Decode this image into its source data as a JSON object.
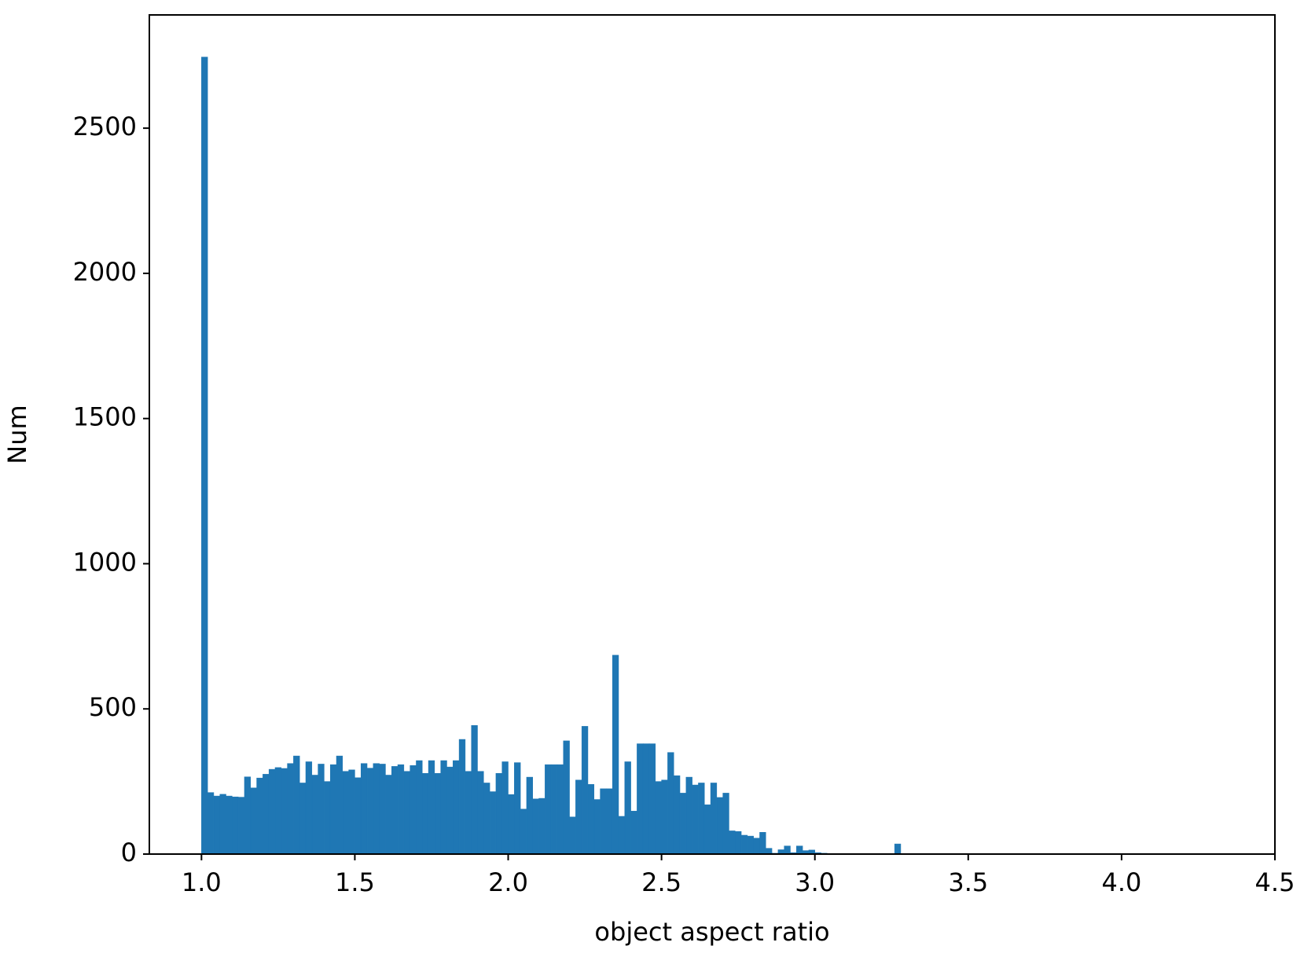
{
  "chart_data": {
    "type": "histogram",
    "xlabel": "object aspect ratio",
    "ylabel": "Num",
    "color": "#1f77b4",
    "bins": [
      1.0,
      1.02,
      1.04,
      1.06,
      1.08,
      1.1,
      1.12,
      1.14,
      1.16,
      1.18,
      1.2,
      1.22,
      1.24,
      1.26,
      1.28,
      1.3,
      1.32,
      1.34,
      1.36,
      1.38,
      1.4,
      1.42,
      1.44,
      1.46,
      1.48,
      1.5,
      1.52,
      1.54,
      1.56,
      1.58,
      1.6,
      1.62,
      1.64,
      1.66,
      1.68,
      1.7,
      1.72,
      1.74,
      1.76,
      1.78,
      1.8,
      1.82,
      1.84,
      1.86,
      1.88,
      1.9,
      1.92,
      1.94,
      1.96,
      1.98,
      2.0,
      2.02,
      2.04,
      2.06,
      2.08,
      2.1,
      2.12,
      2.14,
      2.16,
      2.18,
      2.2,
      2.22,
      2.24,
      2.26,
      2.28,
      2.3,
      2.32,
      2.34,
      2.36,
      2.38,
      2.4,
      2.42,
      2.44,
      2.46,
      2.48,
      2.5,
      2.52,
      2.54,
      2.56,
      2.58,
      2.6,
      2.62,
      2.64,
      2.66,
      2.68,
      2.7,
      2.72,
      2.74,
      2.76,
      2.78,
      2.8,
      2.82,
      2.84,
      2.86,
      2.88,
      2.9,
      2.92,
      2.94,
      2.96,
      2.98,
      3.0,
      3.02,
      3.04,
      3.06,
      3.08,
      3.1,
      3.12,
      3.14,
      3.16,
      3.18,
      3.2,
      3.22,
      3.24,
      3.26,
      3.28,
      3.3
    ],
    "values": [
      2745,
      212,
      200,
      206,
      200,
      197,
      196,
      266,
      228,
      262,
      275,
      292,
      298,
      295,
      312,
      338,
      245,
      318,
      272,
      310,
      250,
      308,
      338,
      285,
      290,
      263,
      312,
      296,
      312,
      310,
      272,
      302,
      308,
      285,
      305,
      322,
      278,
      322,
      278,
      322,
      300,
      322,
      395,
      285,
      443,
      285,
      245,
      215,
      278,
      318,
      205,
      315,
      155,
      265,
      190,
      192,
      308,
      308,
      308,
      390,
      128,
      255,
      440,
      240,
      188,
      225,
      225,
      685,
      130,
      318,
      148,
      380,
      380,
      380,
      250,
      255,
      350,
      270,
      210,
      265,
      238,
      245,
      170,
      245,
      195,
      210,
      80,
      78,
      65,
      62,
      55,
      75,
      20,
      3,
      15,
      28,
      5,
      28,
      12,
      14,
      5,
      3,
      1,
      0,
      0,
      0,
      0,
      0,
      0,
      0,
      0,
      0,
      0,
      35,
      0
    ],
    "xlim": [
      0.83,
      4.5
    ],
    "ylim": [
      0,
      2890
    ],
    "xticks": [
      {
        "value": 1,
        "label": "1.0"
      },
      {
        "value": 1.5,
        "label": "1.5"
      },
      {
        "value": 2,
        "label": "2.0"
      },
      {
        "value": 2.5,
        "label": "2.5"
      },
      {
        "value": 3,
        "label": "3.0"
      },
      {
        "value": 3.5,
        "label": "3.5"
      },
      {
        "value": 4,
        "label": "4.0"
      },
      {
        "value": 4.5,
        "label": "4.5"
      }
    ],
    "yticks": [
      0,
      500,
      1000,
      1500,
      2000,
      2500
    ]
  }
}
